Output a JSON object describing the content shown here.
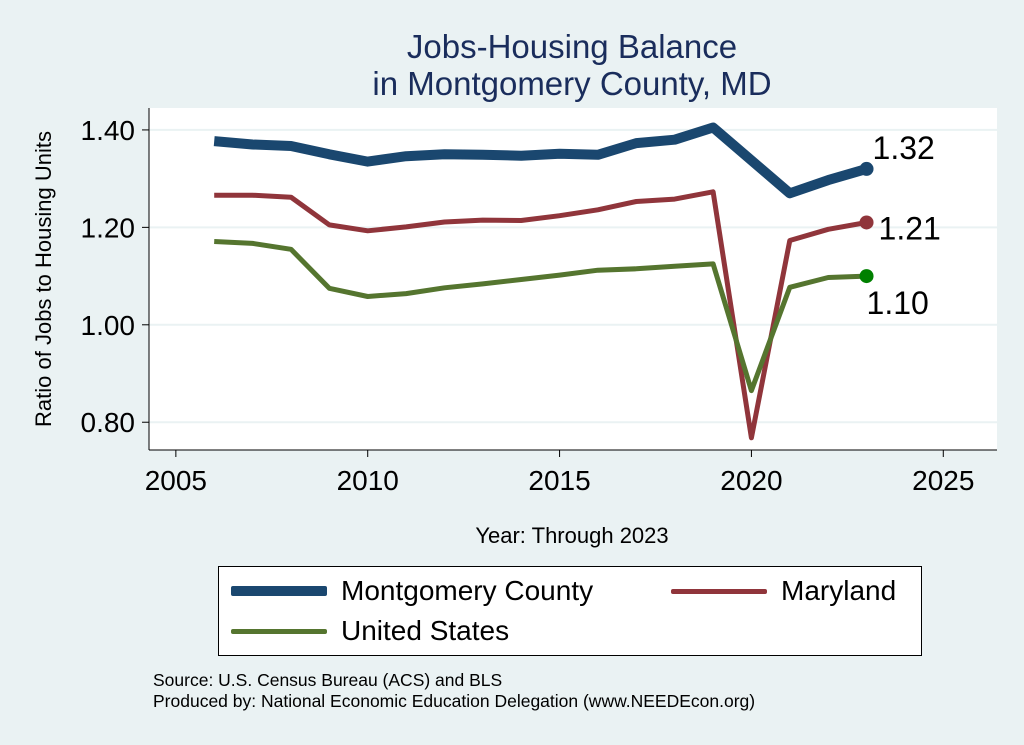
{
  "chart_data": {
    "type": "line",
    "title": "Jobs-Housing Balance",
    "subtitle": "in Montgomery County, MD",
    "xlabel": "Year: Through 2023",
    "ylabel": "Ratio of Jobs to Housing Units",
    "xlim": [
      2004.3,
      2026.4
    ],
    "ylim": [
      0.743,
      1.445
    ],
    "xticks": [
      2005,
      2010,
      2015,
      2020,
      2025
    ],
    "xtick_labels": [
      "2005",
      "2010",
      "2015",
      "2020",
      "2025"
    ],
    "yticks": [
      0.8,
      1.0,
      1.2,
      1.4
    ],
    "ytick_labels": [
      "0.80",
      "1.00",
      "1.20",
      "1.40"
    ],
    "grid": "horizontal",
    "legend_position": "bottom",
    "x": [
      2006,
      2007,
      2008,
      2009,
      2010,
      2011,
      2012,
      2013,
      2014,
      2015,
      2016,
      2017,
      2018,
      2019,
      2020,
      2021,
      2022,
      2023
    ],
    "series": [
      {
        "name": "Montgomery County",
        "color": "#1a476f",
        "width": 10,
        "values": [
          1.377,
          1.37,
          1.367,
          1.35,
          1.335,
          1.346,
          1.35,
          1.349,
          1.347,
          1.351,
          1.349,
          1.373,
          1.38,
          1.405,
          null,
          1.27,
          1.297,
          1.32
        ],
        "end_label": "1.32"
      },
      {
        "name": "Maryland",
        "color": "#90353b",
        "width": 5,
        "values": [
          1.266,
          1.266,
          1.262,
          1.205,
          1.193,
          1.201,
          1.211,
          1.215,
          1.214,
          1.224,
          1.236,
          1.253,
          1.258,
          1.273,
          0.768,
          1.173,
          1.196,
          1.21
        ],
        "end_label": "1.21"
      },
      {
        "name": "United States",
        "color": "#55752f",
        "width": 5,
        "marker_color": "#008000",
        "values": [
          1.171,
          1.167,
          1.155,
          1.075,
          1.058,
          1.064,
          1.076,
          1.084,
          1.093,
          1.102,
          1.112,
          1.115,
          1.12,
          1.125,
          0.865,
          1.077,
          1.097,
          1.1
        ],
        "end_label": "1.10"
      }
    ]
  },
  "notes": {
    "source": "Source: U.S. Census Bureau (ACS) and BLS",
    "produced": "Produced by: National Economic Education Delegation (www.NEEDEcon.org)"
  }
}
